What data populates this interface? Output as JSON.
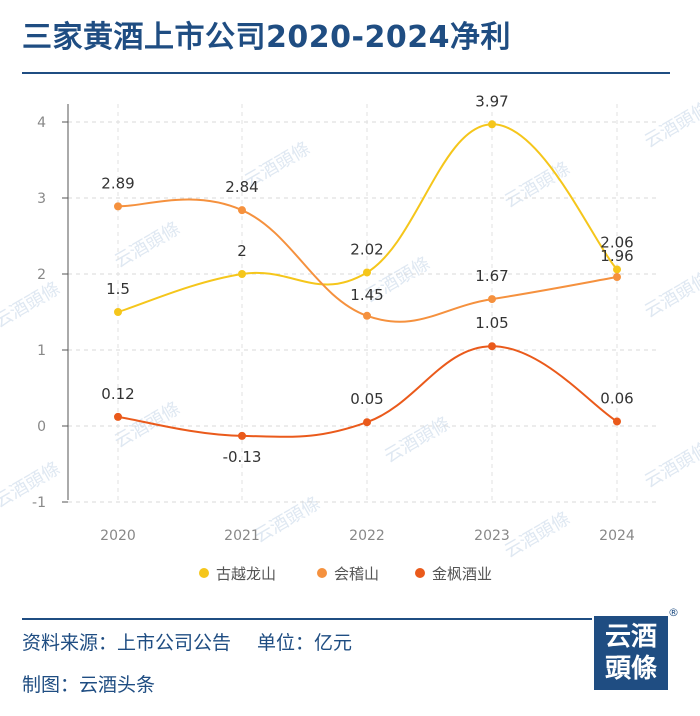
{
  "title": "三家黄酒上市公司2020-2024净利",
  "chart_data": {
    "type": "line",
    "title": "三家黄酒上市公司2020-2024净利",
    "categories": [
      "2020",
      "2021",
      "2022",
      "2023",
      "2024"
    ],
    "series": [
      {
        "name": "古越龙山",
        "color": "#f5c61b",
        "values": [
          1.5,
          2,
          2.02,
          3.97,
          2.06
        ],
        "labels": [
          "1.5",
          "2",
          "2.02",
          "3.97",
          "2.06"
        ]
      },
      {
        "name": "会稽山",
        "color": "#f5913e",
        "values": [
          2.89,
          2.84,
          1.45,
          1.67,
          1.96
        ],
        "labels": [
          "2.89",
          "2.84",
          "1.45",
          "1.67",
          "1.96"
        ]
      },
      {
        "name": "金枫酒业",
        "color": "#ea5a1b",
        "values": [
          0.12,
          -0.13,
          0.05,
          1.05,
          0.06
        ],
        "labels": [
          "0.12",
          "-0.13",
          "0.05",
          "1.05",
          "0.06"
        ]
      }
    ],
    "ylim": [
      -1,
      4
    ],
    "yticks": [
      "-1",
      "0",
      "1",
      "2",
      "3",
      "4"
    ],
    "xlabel": "",
    "ylabel": "",
    "grid": true,
    "legend": "bottom"
  },
  "watermark": "云酒頭條",
  "footer": {
    "source": "资料来源：上市公司公告",
    "unit": "单位：亿元",
    "maker": "制图：云酒头条"
  },
  "logo": {
    "line1": "云酒",
    "line2": "頭條"
  },
  "reg_mark": "®"
}
